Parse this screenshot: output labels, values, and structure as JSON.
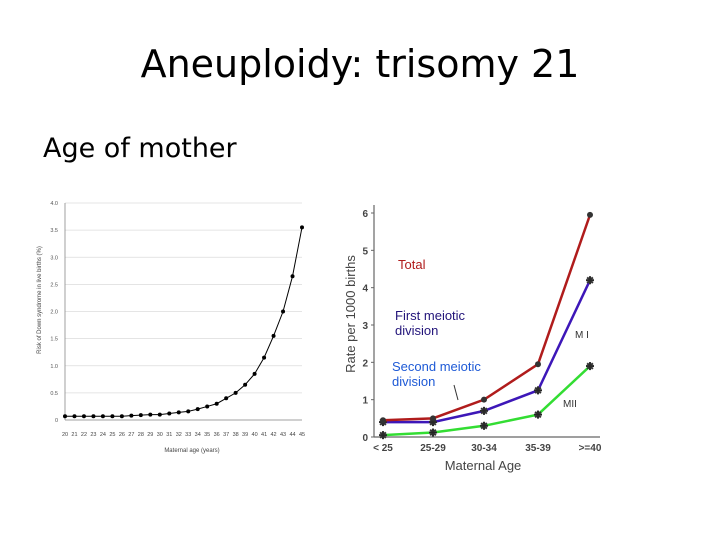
{
  "slide": {
    "title": "Aneuploidy: trisomy 21",
    "bullet": "Age of mother"
  },
  "chart_data": [
    {
      "type": "line",
      "title": "",
      "xlabel": "Maternal age (years)",
      "ylabel": "Risk of Down syndrome in live births (%)",
      "x": [
        20,
        21,
        22,
        23,
        24,
        25,
        26,
        27,
        28,
        29,
        30,
        31,
        32,
        33,
        34,
        35,
        36,
        37,
        38,
        39,
        40,
        41,
        42,
        43,
        44,
        45
      ],
      "series": [
        {
          "values": [
            0.07,
            0.07,
            0.07,
            0.07,
            0.07,
            0.07,
            0.07,
            0.08,
            0.09,
            0.1,
            0.1,
            0.12,
            0.14,
            0.16,
            0.2,
            0.25,
            0.3,
            0.4,
            0.5,
            0.65,
            0.85,
            1.15,
            1.55,
            2.0,
            2.65,
            3.55
          ]
        }
      ],
      "ylim": [
        0,
        4.0
      ],
      "yticks": [
        "0",
        "0.5",
        "1.0",
        "1.5",
        "2.0",
        "2.5",
        "3.0",
        "3.5",
        "4.0"
      ],
      "grid": true,
      "color": "#000000"
    },
    {
      "type": "line",
      "xlabel": "Maternal Age",
      "ylabel": "Rate per 1000 births",
      "categories": [
        "< 25",
        "25-29",
        "30-34",
        "35-39",
        ">=40"
      ],
      "ylim": [
        0,
        6
      ],
      "yticks": [
        "0",
        "1",
        "2",
        "3",
        "4",
        "5",
        "6"
      ],
      "series": [
        {
          "name": "Total",
          "color": "#b01c1c",
          "marker": "dot",
          "values": [
            0.45,
            0.5,
            1.0,
            1.95,
            5.95
          ]
        },
        {
          "name": "MI",
          "color": "#3d17b8",
          "marker": "star",
          "values": [
            0.4,
            0.4,
            0.7,
            1.25,
            4.2
          ]
        },
        {
          "name": "MII",
          "color": "#33dd33",
          "marker": "star",
          "values": [
            0.05,
            0.12,
            0.3,
            0.6,
            1.9
          ]
        }
      ],
      "annotations": {
        "total": "Total",
        "first_line1": "First meiotic",
        "first_line2": "division",
        "second_line1": "Second meiotic",
        "second_line2": "division",
        "mi": "M I",
        "mii": "MII"
      },
      "annotation_colors": {
        "total": "#b01c1c",
        "first": "#22147a",
        "second": "#1e5ad6",
        "mi": "#333333",
        "mii": "#333333"
      }
    }
  ]
}
